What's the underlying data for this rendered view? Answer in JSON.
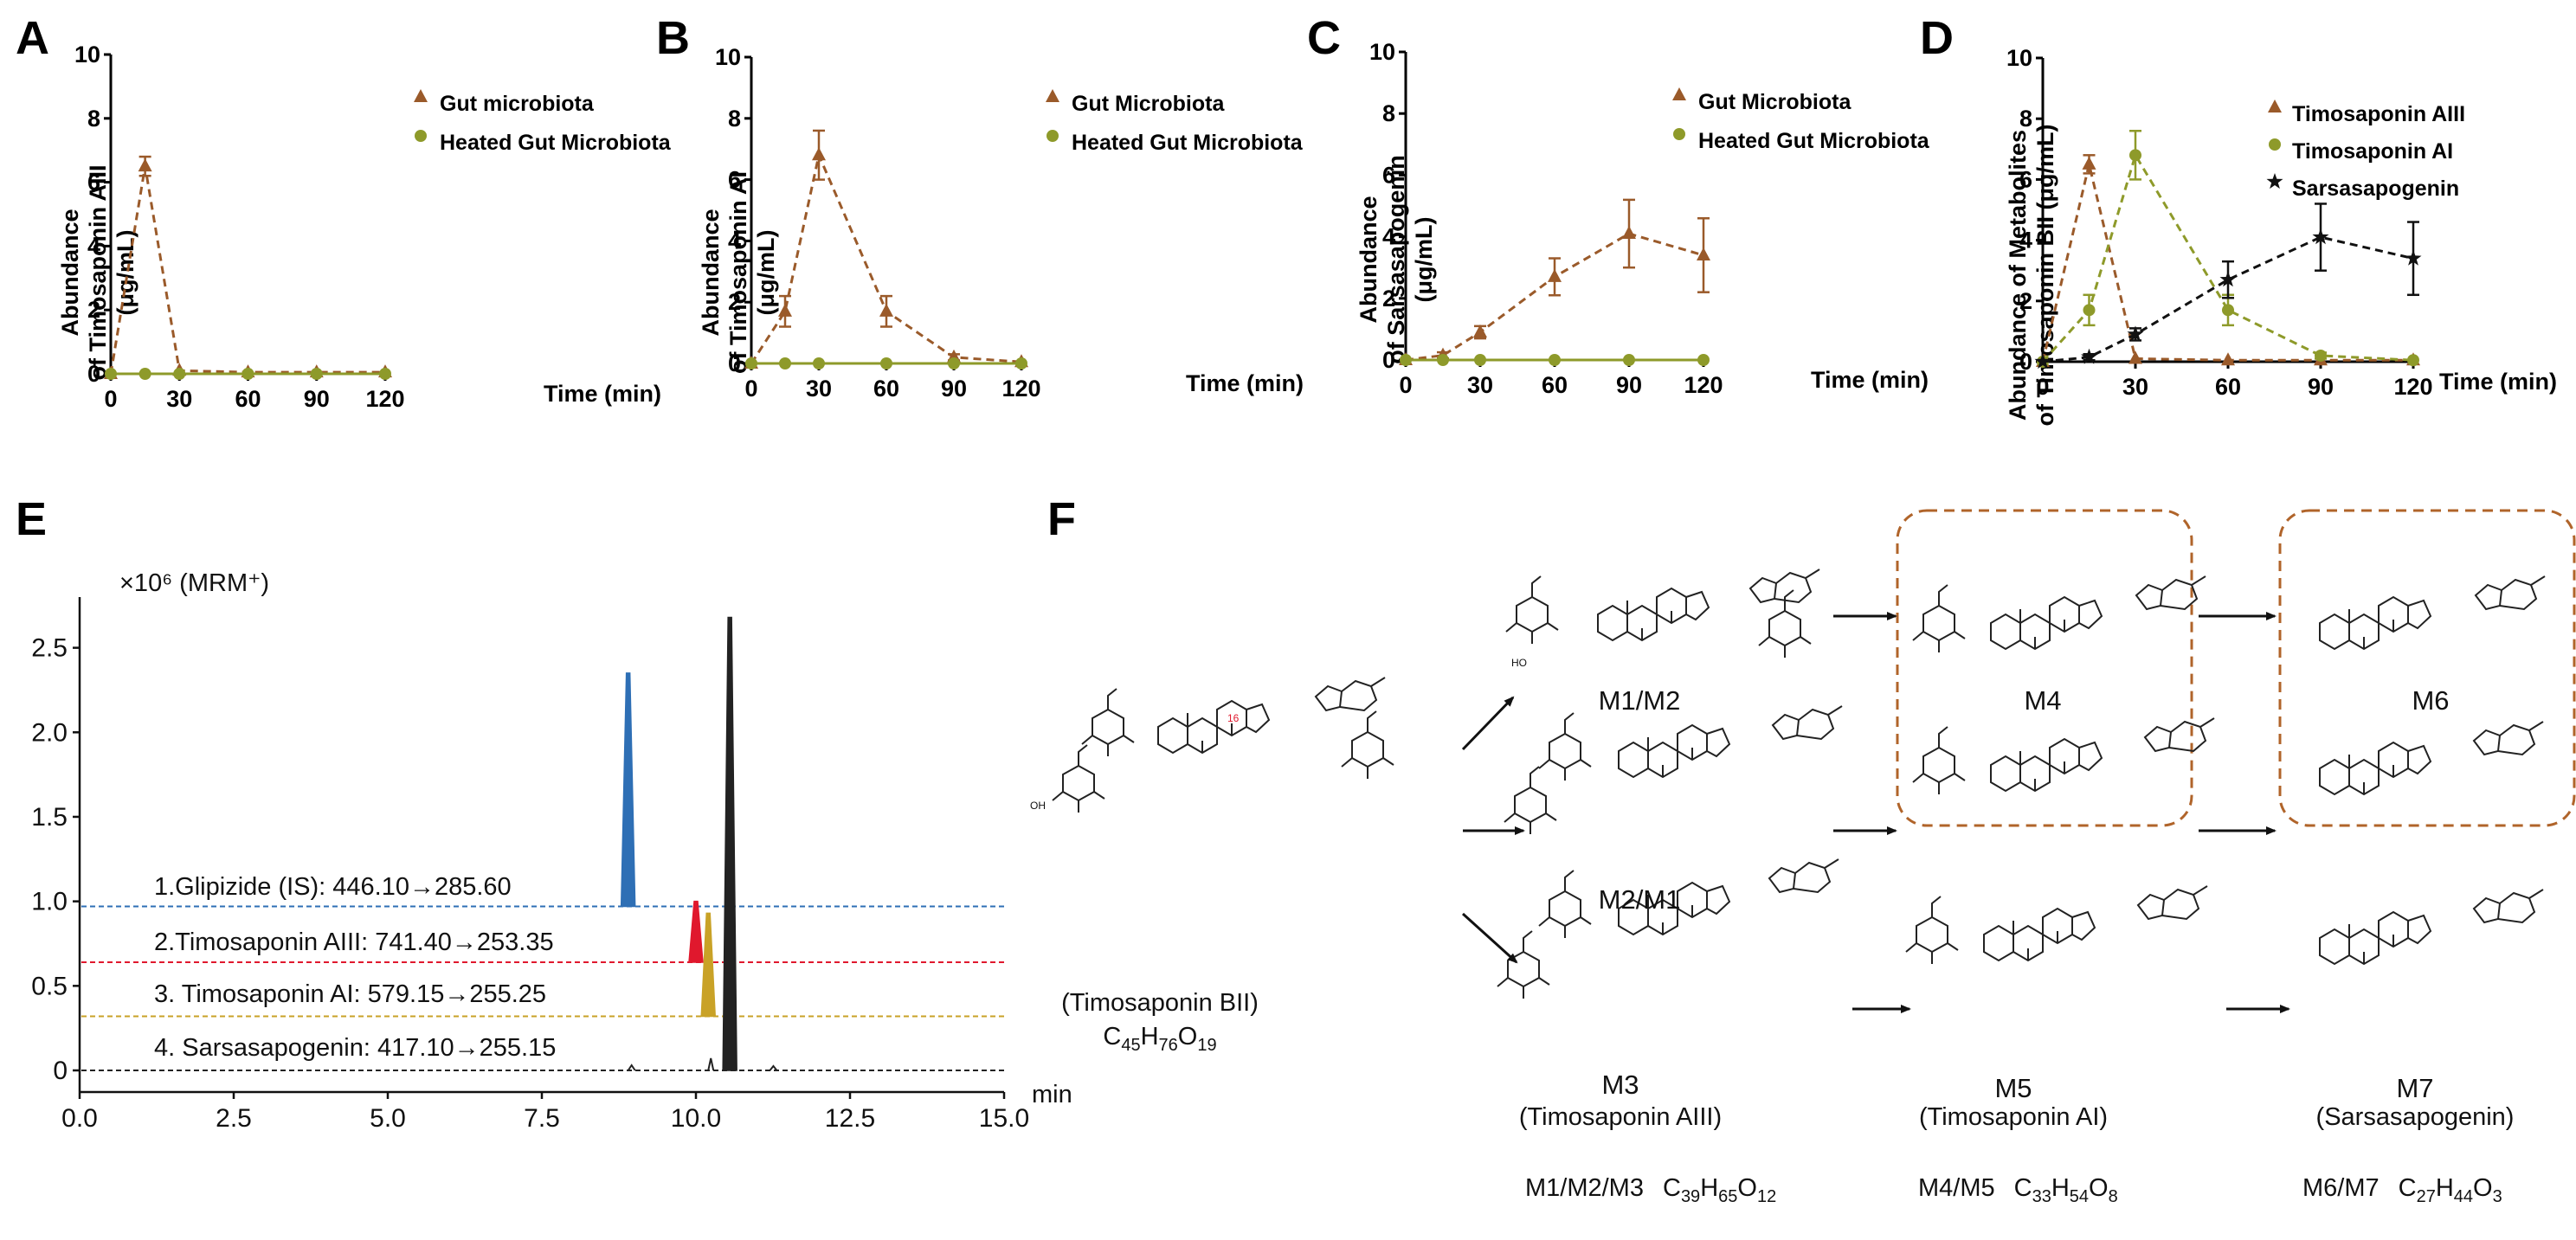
{
  "chart_data": [
    {
      "panel": "A",
      "type": "line",
      "ylabel": [
        "Abundance",
        "of  Timosaponin AIII",
        "(μg/mL)"
      ],
      "xlabel": "Time (min)",
      "ylim": [
        0,
        10
      ],
      "yticks": [
        "0",
        "2",
        "4",
        "6",
        "8",
        "10"
      ],
      "xlim": [
        0,
        120
      ],
      "xticks": [
        "0",
        "30",
        "60",
        "90",
        "120"
      ],
      "x": [
        0,
        15,
        30,
        60,
        90,
        120
      ],
      "series": [
        {
          "name": "Gut microbiota",
          "color": "#9a5a2a",
          "marker": "triangle",
          "values": [
            0,
            6.5,
            0.1,
            0.05,
            0.05,
            0.05
          ],
          "err": [
            0,
            0.3,
            0,
            0,
            0,
            0
          ]
        },
        {
          "name": "Heated Gut Microbiota",
          "color": "#8e9a2a",
          "marker": "circle",
          "values": [
            0,
            0,
            0,
            0,
            0,
            0
          ],
          "err": [
            0,
            0,
            0,
            0,
            0,
            0
          ]
        }
      ]
    },
    {
      "panel": "B",
      "type": "line",
      "ylabel": [
        "Abundance",
        "of Timosaponin AI",
        "(μg/mL)"
      ],
      "xlabel": "Time (min)",
      "ylim": [
        0,
        10
      ],
      "yticks": [
        "0",
        "2",
        "4",
        "6",
        "8",
        "10"
      ],
      "xlim": [
        0,
        120
      ],
      "xticks": [
        "0",
        "30",
        "60",
        "90",
        "120"
      ],
      "x": [
        0,
        15,
        30,
        60,
        90,
        120
      ],
      "series": [
        {
          "name": "Gut Microbiota",
          "color": "#9a5a2a",
          "marker": "triangle",
          "values": [
            0,
            1.7,
            6.8,
            1.7,
            0.2,
            0.05
          ],
          "err": [
            0,
            0.5,
            0.8,
            0.5,
            0.1,
            0
          ]
        },
        {
          "name": "Heated Gut Microbiota",
          "color": "#8e9a2a",
          "marker": "circle",
          "values": [
            0,
            0,
            0,
            0,
            0,
            0
          ],
          "err": [
            0,
            0,
            0,
            0,
            0,
            0
          ]
        }
      ]
    },
    {
      "panel": "C",
      "type": "line",
      "ylabel": [
        "Abundance",
        "of  Sarsasapogenin",
        "(μg/mL)"
      ],
      "xlabel": "Time (min)",
      "ylim": [
        0,
        10
      ],
      "yticks": [
        "0",
        "2",
        "4",
        "6",
        "8",
        "10"
      ],
      "xlim": [
        0,
        120
      ],
      "xticks": [
        "0",
        "30",
        "60",
        "90",
        "120"
      ],
      "x": [
        0,
        15,
        30,
        60,
        90,
        120
      ],
      "series": [
        {
          "name": "Gut Microbiota",
          "color": "#9a5a2a",
          "marker": "triangle",
          "values": [
            0,
            0.15,
            0.9,
            2.7,
            4.1,
            3.4
          ],
          "err": [
            0,
            0.1,
            0.2,
            0.6,
            1.1,
            1.2
          ]
        },
        {
          "name": "Heated Gut Microbiota",
          "color": "#8e9a2a",
          "marker": "circle",
          "values": [
            0,
            0,
            0,
            0,
            0,
            0
          ],
          "err": [
            0,
            0,
            0,
            0,
            0,
            0
          ]
        }
      ]
    },
    {
      "panel": "D",
      "type": "line",
      "ylabel": [
        "Abundance of  Metabolites",
        "of Timosaponin BII (μg/mL)"
      ],
      "xlabel": "Time (min)",
      "ylim": [
        0,
        10
      ],
      "yticks": [
        "0",
        "2",
        "4",
        "6",
        "8",
        "10"
      ],
      "xlim": [
        0,
        120
      ],
      "xticks": [
        "0",
        "30",
        "60",
        "90",
        "120"
      ],
      "x": [
        0,
        15,
        30,
        60,
        90,
        120
      ],
      "series": [
        {
          "name": "Timosaponin AIII",
          "color": "#9a5a2a",
          "marker": "triangle",
          "values": [
            0,
            6.5,
            0.1,
            0.05,
            0.05,
            0.05
          ],
          "err": [
            0,
            0.3,
            0,
            0,
            0,
            0
          ]
        },
        {
          "name": "Timosaponin AI",
          "color": "#8e9a2a",
          "marker": "circle",
          "values": [
            0,
            1.7,
            6.8,
            1.7,
            0.2,
            0.05
          ],
          "err": [
            0,
            0.5,
            0.8,
            0.5,
            0.1,
            0
          ]
        },
        {
          "name": "Sarsasapogenin",
          "color": "#111111",
          "marker": "star",
          "values": [
            0,
            0.15,
            0.9,
            2.7,
            4.1,
            3.4
          ],
          "err": [
            0,
            0.1,
            0.2,
            0.6,
            1.1,
            1.2
          ]
        }
      ]
    },
    {
      "panel": "E",
      "type": "line",
      "title": "×10⁶ (MRM⁺)",
      "xlabel": "min",
      "xlim": [
        0,
        15
      ],
      "xticks": [
        "0.0",
        "2.5",
        "5.0",
        "7.5",
        "10.0",
        "12.5",
        "15.0"
      ],
      "ylim": [
        0,
        2.8
      ],
      "yticks": [
        "0",
        "0.5",
        "1.0",
        "1.5",
        "2.0",
        "2.5"
      ],
      "traces": [
        {
          "label": "1.Glipizide (IS): 446.10→285.60",
          "color": "#2e6fb5",
          "baseline": 0.97,
          "peak_time": 8.9,
          "peak_top": 2.35
        },
        {
          "label": "2.Timosaponin AIII: 741.40→253.35",
          "color": "#e0182d",
          "baseline": 0.64,
          "peak_time": 10.0,
          "peak_top": 1.0
        },
        {
          "label": "3. Timosaponin AI: 579.15→255.25",
          "color": "#c9a227",
          "baseline": 0.32,
          "peak_time": 10.2,
          "peak_top": 0.93
        },
        {
          "label": "4. Sarsasapogenin: 417.10→255.15",
          "color": "#222222",
          "baseline": 0.0,
          "peak_time": 10.55,
          "peak_top": 2.68
        }
      ]
    }
  ],
  "panel_labels": [
    "A",
    "B",
    "C",
    "D",
    "E",
    "F"
  ],
  "scheme": {
    "parent_name": "(Timosaponin BII)",
    "parent_formula": {
      "main": "C",
      "n1": "45",
      "e2": "H",
      "n2": "76",
      "e3": "O",
      "n3": "19"
    },
    "metabolites": [
      "M1/M2",
      "M2/M1",
      "M3",
      "M4",
      "M5",
      "M6",
      "M7"
    ],
    "names": [
      "(Timosaponin AIII)",
      "(Timosaponin AI)",
      "(Sarsasapogenin)"
    ],
    "formulas": [
      {
        "prefix": "M1/M2/M3",
        "c": "39",
        "h": "65",
        "o": "12"
      },
      {
        "prefix": "M4/M5",
        "c": "33",
        "h": "54",
        "o": "8"
      },
      {
        "prefix": "M6/M7",
        "c": "27",
        "h": "44",
        "o": "3"
      }
    ],
    "element_symbols": [
      "C",
      "H",
      "O"
    ],
    "atoms": {
      "oh": "OH",
      "ho": "HO",
      "o": "O",
      "h": "H"
    },
    "colors": {
      "box": "#b0642a",
      "numbers": "#e0182d"
    }
  }
}
